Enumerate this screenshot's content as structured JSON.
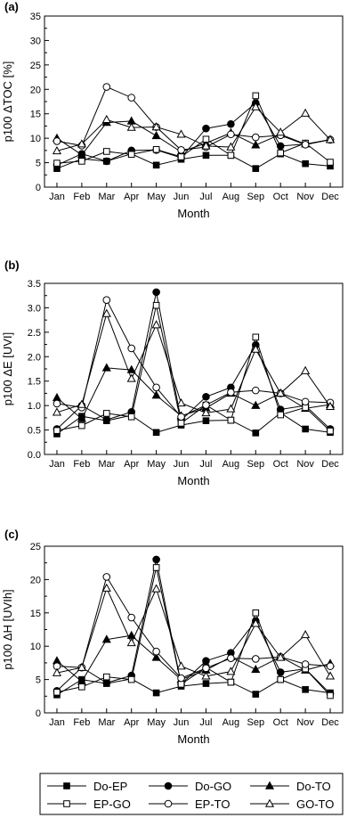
{
  "chart_data": [
    {
      "type": "line",
      "panel_label": "(a)",
      "xlabel": "Month",
      "ylabel": "p100 ΔTOC [%]",
      "ylim": [
        0,
        35
      ],
      "yticks": [
        "0",
        "5",
        "10",
        "15",
        "20",
        "25",
        "30",
        "35"
      ],
      "categories": [
        "Jan",
        "Feb",
        "Mar",
        "Apr",
        "May",
        "Jun",
        "Jul",
        "Aug",
        "Sep",
        "Oct",
        "Nov",
        "Dec"
      ],
      "series": [
        {
          "name": "Do-EP",
          "values": [
            3.8,
            5.8,
            5.3,
            6.8,
            4.5,
            5.7,
            6.5,
            6.5,
            3.8,
            6.8,
            4.8,
            4.3
          ]
        },
        {
          "name": "Do-GO",
          "values": [
            4.5,
            6.8,
            5.3,
            7.5,
            7.6,
            6.0,
            12.0,
            12.9,
            17.2,
            8.4,
            8.8,
            9.7
          ]
        },
        {
          "name": "Do-TO",
          "values": [
            10.0,
            6.6,
            13.2,
            13.5,
            10.5,
            7.2,
            9.0,
            11.1,
            8.6,
            10.8,
            8.8,
            9.7
          ]
        },
        {
          "name": "EP-GO",
          "values": [
            4.9,
            5.3,
            7.3,
            6.7,
            7.7,
            6.2,
            9.8,
            6.5,
            18.7,
            7.0,
            9.0,
            5.1
          ]
        },
        {
          "name": "EP-TO",
          "values": [
            9.4,
            8.5,
            20.5,
            18.3,
            12.3,
            7.6,
            8.2,
            10.8,
            10.2,
            10.6,
            8.7,
            9.7
          ]
        },
        {
          "name": "GO-TO",
          "values": [
            7.4,
            8.8,
            13.8,
            12.2,
            12.3,
            10.8,
            8.4,
            8.2,
            16.4,
            11.2,
            15.1,
            9.7
          ]
        }
      ]
    },
    {
      "type": "line",
      "panel_label": "(b)",
      "xlabel": "Month",
      "ylabel": "p100 ΔE [UVI]",
      "ylim": [
        0,
        3.5
      ],
      "yticks": [
        "0.0",
        "0.5",
        "1.0",
        "1.5",
        "2.0",
        "2.5",
        "3.0",
        "3.5"
      ],
      "categories": [
        "Jan",
        "Feb",
        "Mar",
        "Apr",
        "May",
        "Jun",
        "Jul",
        "Aug",
        "Sep",
        "Oct",
        "Nov",
        "Dec"
      ],
      "series": [
        {
          "name": "Do-EP",
          "values": [
            0.42,
            0.78,
            0.69,
            0.8,
            0.45,
            0.6,
            0.69,
            0.7,
            0.44,
            0.85,
            0.52,
            0.45
          ]
        },
        {
          "name": "Do-GO",
          "values": [
            0.52,
            1.0,
            0.71,
            0.87,
            3.32,
            0.7,
            1.18,
            1.37,
            2.24,
            0.92,
            1.0,
            0.52
          ]
        },
        {
          "name": "Do-TO",
          "values": [
            1.16,
            0.73,
            1.77,
            1.73,
            1.21,
            0.79,
            0.95,
            1.25,
            1.0,
            1.25,
            0.94,
            1.02
          ]
        },
        {
          "name": "EP-GO",
          "values": [
            0.49,
            0.59,
            0.84,
            0.77,
            3.05,
            0.64,
            1.01,
            0.7,
            2.4,
            0.81,
            0.96,
            0.48
          ]
        },
        {
          "name": "EP-TO",
          "values": [
            1.04,
            0.96,
            3.16,
            2.17,
            1.37,
            0.77,
            1.01,
            1.27,
            1.31,
            1.25,
            1.08,
            1.06
          ]
        },
        {
          "name": "GO-TO",
          "values": [
            0.86,
            1.02,
            2.88,
            1.55,
            2.65,
            1.05,
            0.85,
            0.93,
            2.15,
            1.25,
            1.71,
            0.98
          ]
        }
      ]
    },
    {
      "type": "line",
      "panel_label": "(c)",
      "xlabel": "Month",
      "ylabel": "p100 ΔH [UVIh]",
      "ylim": [
        0,
        25
      ],
      "yticks": [
        "0",
        "5",
        "10",
        "15",
        "20",
        "25"
      ],
      "categories": [
        "Jan",
        "Feb",
        "Mar",
        "Apr",
        "May",
        "Jun",
        "Jul",
        "Aug",
        "Sep",
        "Oct",
        "Nov",
        "Dec"
      ],
      "series": [
        {
          "name": "Do-EP",
          "values": [
            2.7,
            5.0,
            4.4,
            5.1,
            3.0,
            4.0,
            4.4,
            4.6,
            2.8,
            5.0,
            3.5,
            3.0
          ]
        },
        {
          "name": "Do-GO",
          "values": [
            3.3,
            6.8,
            4.5,
            5.6,
            23.0,
            4.3,
            7.8,
            9.0,
            13.8,
            6.1,
            6.6,
            2.9
          ]
        },
        {
          "name": "Do-TO",
          "values": [
            7.8,
            4.7,
            11.0,
            11.6,
            8.3,
            5.0,
            6.4,
            8.4,
            6.5,
            8.4,
            6.4,
            7.4
          ]
        },
        {
          "name": "EP-GO",
          "values": [
            3.1,
            3.9,
            5.4,
            5.0,
            21.8,
            4.3,
            6.8,
            4.6,
            15.0,
            5.0,
            6.6,
            2.6
          ]
        },
        {
          "name": "EP-TO",
          "values": [
            7.0,
            6.8,
            20.4,
            14.3,
            9.2,
            5.2,
            6.7,
            8.2,
            8.1,
            8.4,
            7.3,
            7.0
          ]
        },
        {
          "name": "GO-TO",
          "values": [
            6.0,
            6.8,
            18.7,
            10.5,
            18.6,
            7.0,
            5.5,
            6.2,
            13.4,
            8.3,
            11.7,
            5.5
          ]
        }
      ]
    }
  ],
  "legend": [
    {
      "name": "Do-EP",
      "marker": "square",
      "fill": "#000000"
    },
    {
      "name": "Do-GO",
      "marker": "circle",
      "fill": "#000000"
    },
    {
      "name": "Do-TO",
      "marker": "triangle",
      "fill": "#000000"
    },
    {
      "name": "EP-GO",
      "marker": "square",
      "fill": "#ffffff"
    },
    {
      "name": "EP-TO",
      "marker": "circle",
      "fill": "#ffffff"
    },
    {
      "name": "GO-TO",
      "marker": "triangle",
      "fill": "#ffffff"
    }
  ]
}
